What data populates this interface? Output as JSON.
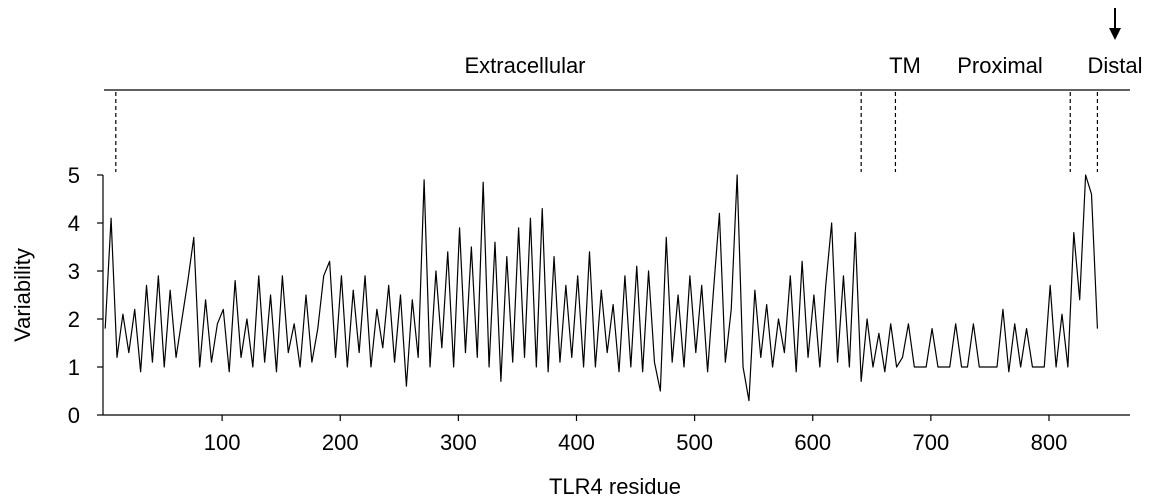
{
  "chart_data": {
    "type": "line",
    "xlabel": "TLR4 residue",
    "ylabel": "Variability",
    "color": "#000000",
    "x": [
      1,
      6,
      11,
      16,
      21,
      26,
      31,
      36,
      41,
      46,
      51,
      56,
      61,
      66,
      71,
      76,
      81,
      86,
      91,
      96,
      101,
      106,
      111,
      116,
      121,
      126,
      131,
      136,
      141,
      146,
      151,
      156,
      161,
      166,
      171,
      176,
      181,
      186,
      191,
      196,
      201,
      206,
      211,
      216,
      221,
      226,
      231,
      236,
      241,
      246,
      251,
      256,
      261,
      266,
      271,
      276,
      281,
      286,
      291,
      296,
      301,
      306,
      311,
      316,
      321,
      326,
      331,
      336,
      341,
      346,
      351,
      356,
      361,
      366,
      371,
      376,
      381,
      386,
      391,
      396,
      401,
      406,
      411,
      416,
      421,
      426,
      431,
      436,
      441,
      446,
      451,
      456,
      461,
      466,
      471,
      476,
      481,
      486,
      491,
      496,
      501,
      506,
      511,
      516,
      521,
      526,
      531,
      536,
      541,
      546,
      551,
      556,
      561,
      566,
      571,
      576,
      581,
      586,
      591,
      596,
      601,
      606,
      611,
      616,
      621,
      626,
      631,
      636,
      641,
      646,
      651,
      656,
      661,
      666,
      671,
      676,
      681,
      686,
      691,
      696,
      701,
      706,
      711,
      716,
      721,
      726,
      731,
      736,
      741,
      746,
      751,
      756,
      761,
      766,
      771,
      776,
      781,
      786,
      791,
      796,
      801,
      806,
      811,
      816,
      821,
      826,
      831,
      836,
      841
    ],
    "values": [
      1.8,
      4.1,
      1.2,
      2.1,
      1.3,
      2.2,
      0.9,
      2.7,
      1.1,
      2.9,
      1.0,
      2.6,
      1.2,
      2.0,
      2.8,
      3.7,
      1.0,
      2.4,
      1.1,
      1.9,
      2.2,
      0.9,
      2.8,
      1.2,
      2.0,
      1.0,
      2.9,
      1.1,
      2.5,
      0.9,
      2.9,
      1.3,
      1.9,
      1.0,
      2.5,
      1.1,
      1.8,
      2.9,
      3.2,
      1.2,
      2.9,
      1.0,
      2.6,
      1.3,
      2.9,
      1.0,
      2.2,
      1.4,
      2.7,
      1.1,
      2.5,
      0.6,
      2.4,
      1.2,
      4.9,
      1.0,
      3.0,
      1.4,
      3.4,
      1.0,
      3.9,
      1.3,
      3.5,
      1.2,
      4.85,
      1.0,
      3.6,
      0.7,
      3.3,
      1.1,
      3.9,
      1.2,
      4.1,
      1.0,
      4.3,
      0.9,
      3.3,
      1.1,
      2.7,
      1.2,
      2.9,
      1.0,
      3.4,
      1.0,
      2.6,
      1.3,
      2.3,
      0.9,
      2.9,
      1.0,
      3.1,
      0.9,
      3.0,
      1.1,
      0.5,
      3.7,
      1.1,
      2.5,
      1.0,
      2.9,
      1.3,
      2.7,
      0.9,
      2.6,
      4.2,
      1.1,
      2.2,
      5.0,
      1.0,
      0.3,
      2.6,
      1.2,
      2.3,
      1.0,
      2.0,
      1.3,
      2.9,
      0.9,
      3.2,
      1.2,
      2.5,
      1.0,
      2.7,
      4.0,
      1.1,
      2.9,
      1.0,
      3.8,
      0.7,
      2.0,
      1.0,
      1.7,
      0.9,
      1.9,
      1.0,
      1.2,
      1.9,
      1.0,
      1.0,
      1.0,
      1.8,
      1.0,
      1.0,
      1.0,
      1.9,
      1.0,
      1.0,
      1.9,
      1.0,
      1.0,
      1.0,
      1.0,
      2.2,
      0.9,
      1.9,
      1.0,
      1.8,
      1.0,
      1.0,
      1.0,
      2.7,
      1.0,
      2.1,
      1.0,
      3.8,
      2.4,
      5.0,
      4.6,
      1.8
    ],
    "xlim": [
      0,
      842
    ],
    "ylim": [
      0,
      5
    ],
    "xticks": [
      100,
      200,
      300,
      400,
      500,
      600,
      700,
      800
    ],
    "yticks": [
      0,
      1,
      2,
      3,
      4,
      5
    ],
    "boundaries": [
      10,
      641,
      670,
      818,
      841
    ],
    "region_labels": [
      "Extracellular",
      "TM",
      "Proximal",
      "Distal"
    ]
  }
}
